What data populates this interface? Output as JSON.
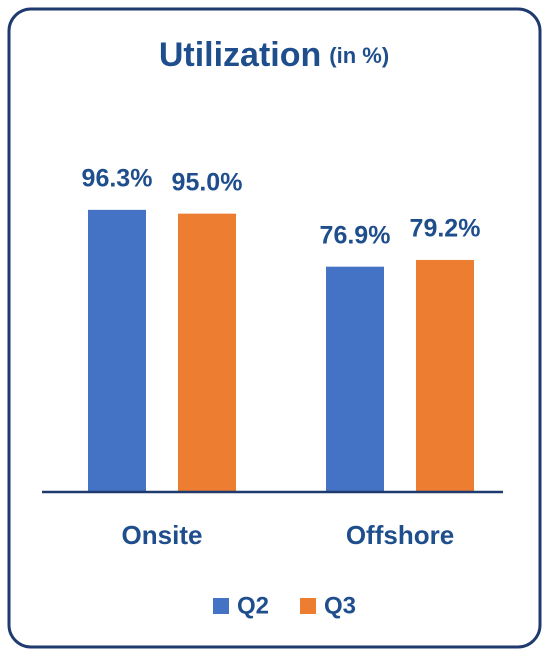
{
  "chart_data": {
    "type": "bar",
    "title": "Utilization",
    "title_unit": "(in %)",
    "categories": [
      "Onsite",
      "Offshore"
    ],
    "series": [
      {
        "name": "Q2",
        "color": "#4472c4",
        "values": [
          96.3,
          76.9
        ],
        "value_labels": [
          "96.3%",
          "76.9%"
        ]
      },
      {
        "name": "Q3",
        "color": "#ed7d31",
        "values": [
          95.0,
          79.2
        ],
        "value_labels": [
          "95.0%",
          "79.2%"
        ]
      }
    ],
    "ylim": [
      0,
      100
    ],
    "legend": "bottom"
  }
}
